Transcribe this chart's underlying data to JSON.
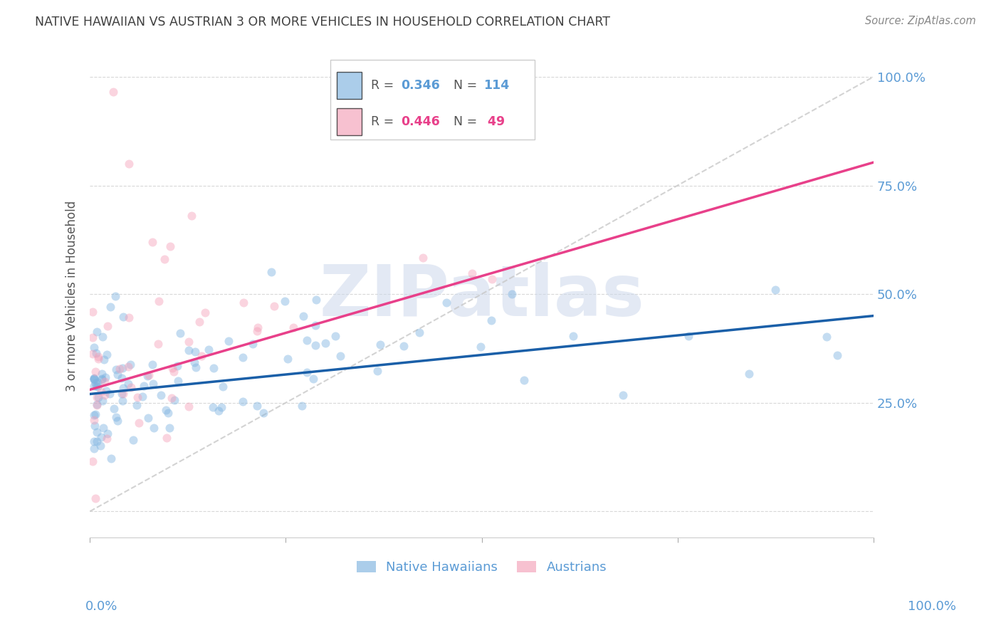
{
  "title": "NATIVE HAWAIIAN VS AUSTRIAN 3 OR MORE VEHICLES IN HOUSEHOLD CORRELATION CHART",
  "source": "Source: ZipAtlas.com",
  "ylabel": "3 or more Vehicles in Household",
  "blue_color": "#7eb3e0",
  "pink_color": "#f4a0b8",
  "blue_line_color": "#1a5fa8",
  "pink_line_color": "#e8408a",
  "diagonal_color": "#c8c8c8",
  "legend_blue_label": "Native Hawaiians",
  "legend_pink_label": "Austrians",
  "title_color": "#404040",
  "text_color": "#5b9bd5",
  "ylabel_color": "#555555",
  "background_color": "#ffffff",
  "watermark": "ZIPatlas",
  "marker_size": 75,
  "marker_alpha": 0.45,
  "line_width": 2.5,
  "xlim": [
    0.0,
    1.0
  ],
  "ylim": [
    0.0,
    1.0
  ],
  "blue_line_x0": 0.0,
  "blue_line_y0": 0.27,
  "blue_line_x1": 1.0,
  "blue_line_y1": 0.45,
  "pink_line_x0": 0.0,
  "pink_line_y0": 0.28,
  "pink_line_x1": 0.65,
  "pink_line_y1": 0.62
}
